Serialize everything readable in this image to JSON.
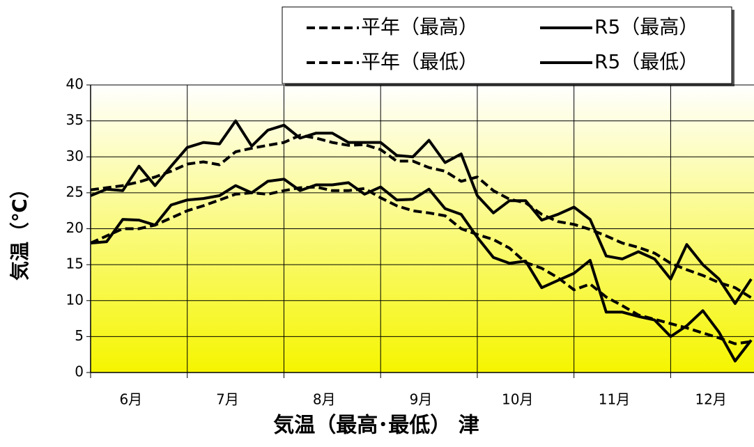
{
  "chart_data": {
    "type": "line",
    "title": "気温（最高･最低） 津",
    "y_label": "気温（℃）",
    "categories": [
      null,
      null,
      "6月",
      null,
      null,
      null,
      null,
      null,
      "7月",
      null,
      null,
      null,
      null,
      null,
      "8月",
      null,
      null,
      null,
      null,
      null,
      "9月",
      null,
      null,
      null,
      null,
      null,
      "10月",
      null,
      null,
      null,
      null,
      null,
      "11月",
      null,
      null,
      null,
      null,
      null,
      "12月",
      null,
      null,
      null
    ],
    "series": [
      {
        "name": "平年（最高）",
        "color": "#000000",
        "dashed": true,
        "values": [
          25.4,
          25.7,
          26,
          26.5,
          27.2,
          28,
          29,
          29.3,
          28.9,
          30.7,
          31.2,
          31.6,
          32,
          33,
          32.6,
          32,
          31.6,
          31.7,
          31,
          29.4,
          29.4,
          28.5,
          28,
          26.6,
          27.2,
          25.3,
          24.1,
          23.6,
          22,
          21,
          20.6,
          19.9,
          19,
          18,
          17.4,
          16.6,
          15.2,
          14.3,
          13.5,
          12.5,
          11.8,
          10.4
        ]
      },
      {
        "name": "R5（最高）",
        "color": "#000000",
        "dashed": false,
        "values": [
          24.6,
          25.5,
          25.3,
          28.7,
          26,
          28.7,
          31.3,
          32,
          31.8,
          35,
          31.5,
          33.7,
          34.4,
          32.6,
          33.3,
          33.3,
          32,
          32,
          32,
          30.2,
          30,
          32.3,
          29.2,
          30.4,
          24.6,
          22.2,
          23.9,
          23.9,
          21.2,
          22,
          23,
          21.3,
          16.2,
          15.8,
          16.8,
          15.8,
          13,
          17.8,
          15,
          13,
          9.6,
          13
        ]
      },
      {
        "name": "平年（最低）",
        "color": "#000000",
        "dashed": true,
        "values": [
          18,
          19,
          20,
          20,
          20.5,
          21.5,
          22.5,
          23.2,
          24,
          24.8,
          25,
          24.8,
          25.3,
          25.7,
          25.8,
          25.3,
          25.3,
          25.6,
          24.3,
          23.2,
          22.5,
          22.2,
          21.8,
          20,
          19.2,
          18.5,
          17.3,
          15.3,
          14.5,
          13.2,
          11.5,
          12.3,
          10.5,
          9.3,
          8,
          7.4,
          6.8,
          6.2,
          5.5,
          4.8,
          4,
          4.3
        ]
      },
      {
        "name": "R5（最低）",
        "color": "#000000",
        "dashed": false,
        "values": [
          18,
          18.2,
          21.3,
          21.2,
          20.5,
          23.3,
          24,
          24.2,
          24.6,
          26,
          25,
          26.6,
          26.9,
          25.3,
          26.1,
          26.1,
          26.4,
          24.8,
          25.8,
          24,
          24.1,
          25.5,
          22.8,
          22,
          18.8,
          16,
          15.2,
          15.5,
          11.8,
          12.8,
          13.8,
          15.6,
          8.4,
          8.4,
          7.8,
          7.3,
          5,
          6.5,
          8.6,
          5.6,
          1.6,
          4.5
        ]
      }
    ],
    "ylim": [
      0,
      40
    ],
    "yticks": [
      0,
      5,
      10,
      15,
      20,
      25,
      30,
      35,
      40
    ],
    "grid": true
  }
}
